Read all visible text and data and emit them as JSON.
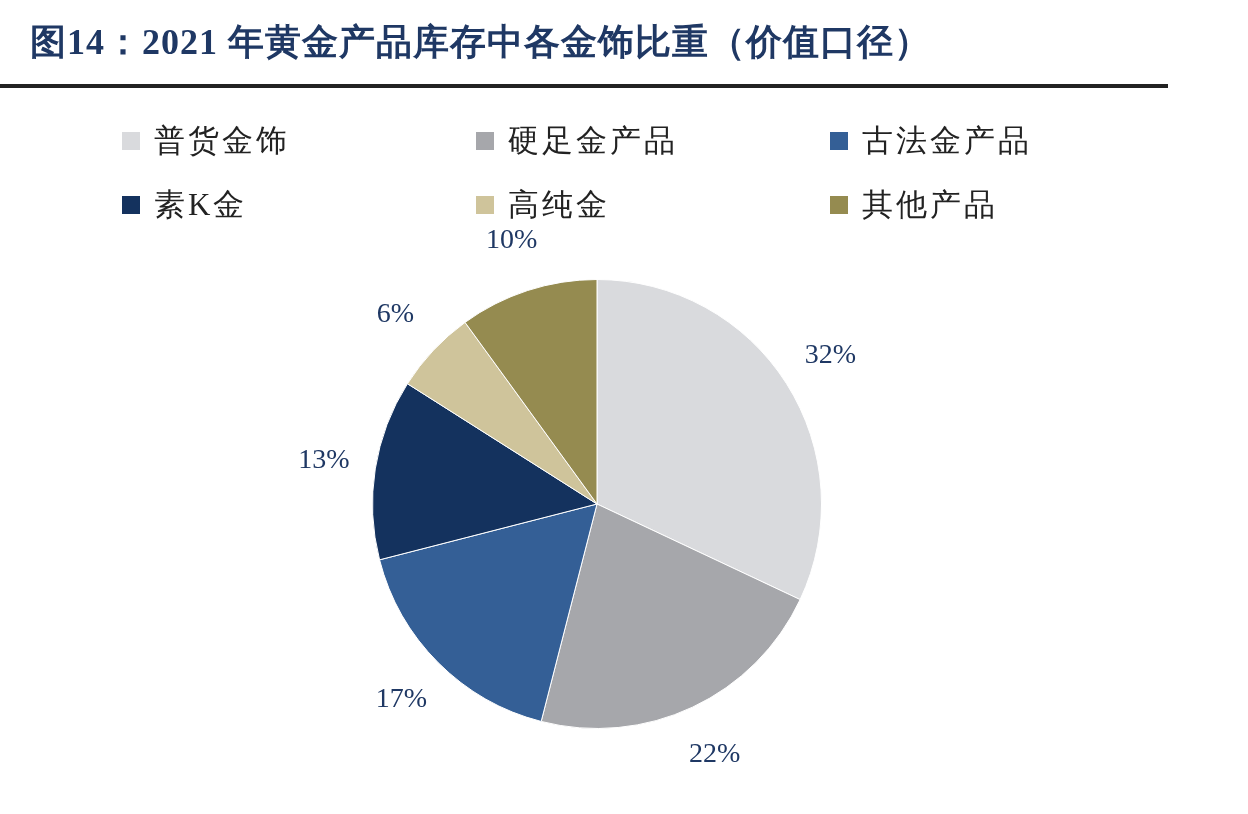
{
  "chart_data": {
    "type": "pie",
    "title": "图14：2021 年黄金产品库存中各金饰比重（价值口径）",
    "categories": [
      "普货金饰",
      "硬足金产品",
      "古法金产品",
      "素K金",
      "高纯金",
      "其他产品"
    ],
    "values": [
      32,
      22,
      17,
      13,
      6,
      10
    ],
    "colors": [
      "#d9dadd",
      "#a6a7ab",
      "#345f96",
      "#14325e",
      "#cfc49b",
      "#958b50"
    ],
    "value_labels": [
      "32%",
      "22%",
      "17%",
      "13%",
      "6%",
      "10%"
    ],
    "legend": "top left"
  }
}
